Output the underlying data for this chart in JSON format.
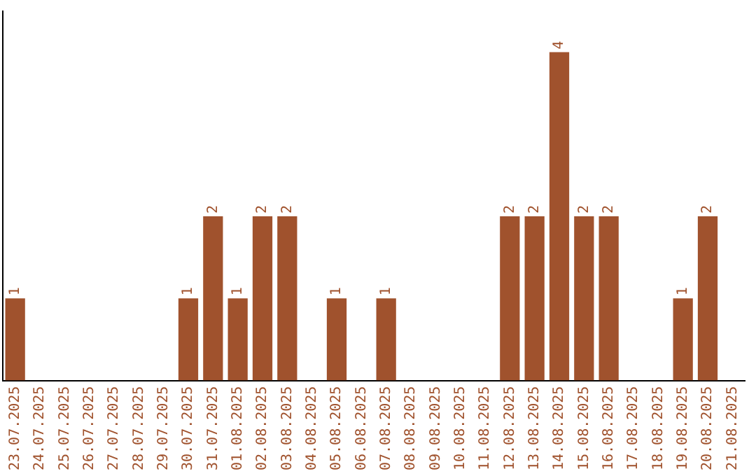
{
  "chart_data": {
    "type": "bar",
    "categories": [
      "23.07.2025",
      "24.07.2025",
      "25.07.2025",
      "26.07.2025",
      "27.07.2025",
      "28.07.2025",
      "29.07.2025",
      "30.07.2025",
      "31.07.2025",
      "01.08.2025",
      "02.08.2025",
      "03.08.2025",
      "04.08.2025",
      "05.08.2025",
      "06.08.2025",
      "07.08.2025",
      "08.08.2025",
      "09.08.2025",
      "10.08.2025",
      "11.08.2025",
      "12.08.2025",
      "13.08.2025",
      "14.08.2025",
      "15.08.2025",
      "16.08.2025",
      "17.08.2025",
      "18.08.2025",
      "19.08.2025",
      "20.08.2025",
      "21.08.2025"
    ],
    "values": [
      1,
      0,
      0,
      0,
      0,
      0,
      0,
      1,
      2,
      1,
      2,
      2,
      0,
      1,
      0,
      1,
      0,
      0,
      0,
      0,
      2,
      2,
      4,
      2,
      2,
      0,
      0,
      1,
      2,
      0
    ],
    "value_labels": [
      "1",
      null,
      null,
      null,
      null,
      null,
      null,
      "1",
      "2",
      "1",
      "2",
      "2",
      null,
      "1",
      null,
      "1",
      null,
      null,
      null,
      null,
      "2",
      "2",
      "4",
      "2",
      "2",
      null,
      null,
      "1",
      "2",
      null
    ],
    "color": "#a0522d",
    "grid": false,
    "legend": false
  }
}
